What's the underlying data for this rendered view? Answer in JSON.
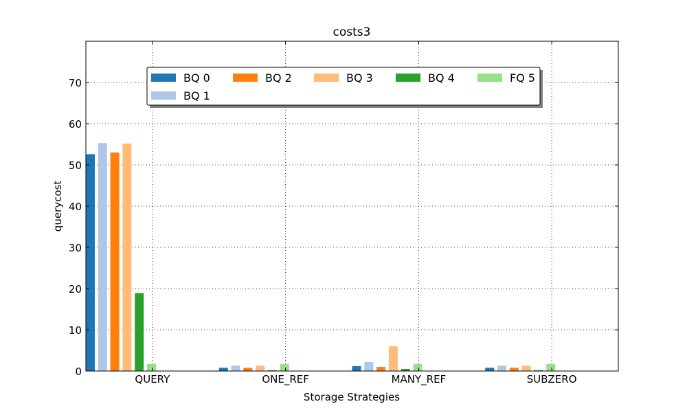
{
  "chart_data": {
    "type": "bar",
    "title": "costs3",
    "xlabel": "Storage Strategies",
    "ylabel": "querycost",
    "categories": [
      "QUERY",
      "ONE_REF",
      "MANY_REF",
      "SUBZERO"
    ],
    "ylim": [
      0,
      80
    ],
    "yticks": [
      0,
      10,
      20,
      30,
      40,
      50,
      60,
      70
    ],
    "grid": true,
    "legend_position": "top",
    "series": [
      {
        "name": "BQ 0",
        "color": "#1f77b4",
        "values": [
          52.6,
          0.8,
          1.2,
          0.8
        ]
      },
      {
        "name": "BQ 1",
        "color": "#aec7e8",
        "values": [
          55.3,
          1.3,
          2.2,
          1.3
        ]
      },
      {
        "name": "BQ 2",
        "color": "#ff7f0e",
        "values": [
          53.0,
          0.8,
          1.0,
          0.8
        ]
      },
      {
        "name": "BQ 3",
        "color": "#ffbb78",
        "values": [
          55.2,
          1.3,
          6.0,
          1.3
        ]
      },
      {
        "name": "BQ 4",
        "color": "#2ca02c",
        "values": [
          18.9,
          0.2,
          0.5,
          0.2
        ]
      },
      {
        "name": "FQ 5",
        "color": "#98df8a",
        "values": [
          1.7,
          1.7,
          1.7,
          1.7
        ]
      }
    ]
  }
}
